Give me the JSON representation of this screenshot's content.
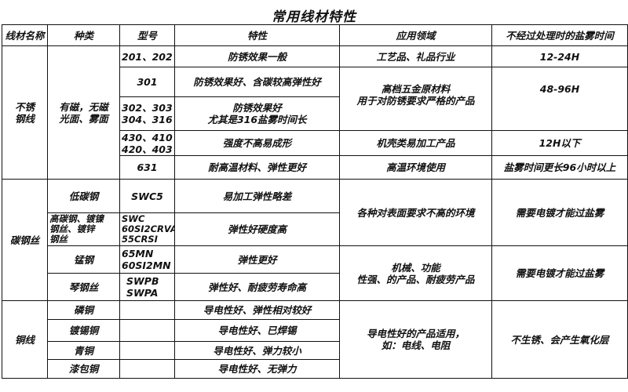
{
  "title": "常用线材特性",
  "headers": [
    "线材名称",
    "种类",
    "型号",
    "特性",
    "应用领域",
    "不经过处理时的盐雾时间"
  ],
  "stainless": {
    "name": "不锈\n钢线",
    "kind": "有磁，无磁\n光面、雾面",
    "rows": [
      {
        "model": "201、202",
        "feature": "防锈效果一般"
      },
      {
        "model": "301",
        "feature": "防锈效果好、含碳较高弹性好"
      },
      {
        "model": "302、303\n304、316",
        "feature": "防锈效果好\n尤其是316盐雾时间长"
      },
      {
        "model": "430、410\n420、403",
        "feature": "强度不高易成形"
      },
      {
        "model": "631",
        "feature": "耐高温材料、弹性更好"
      }
    ],
    "apps": [
      "工艺品、礼品行业",
      "高档五金原材料\n用于对防锈要求严格的产品",
      "机壳类易加工产品",
      "高温环境使用"
    ],
    "salt": [
      "12-24H",
      "48-96H",
      "12H以下",
      "盐雾时间更长96小时以上"
    ]
  },
  "carbon": {
    "name": "碳钢丝",
    "rows": [
      {
        "kind": "低碳钢",
        "model": "SWC5",
        "feature": "易加工弹性略差"
      },
      {
        "kind": "高碳钢、镀镍\n钢丝、镀锌\n钢丝",
        "model": "SWC\n60SI2CRVA、\n55CRSI",
        "feature": "弹性好硬度高"
      },
      {
        "kind": "锰钢",
        "model": "65MN\n60SI2MN",
        "feature": "弹性更好"
      },
      {
        "kind": "琴钢丝",
        "model": "SWPB\nSWPA",
        "feature": "弹性好、耐疲劳寿命高"
      }
    ],
    "apps": [
      "各种对表面要求不高的环境",
      "机械、功能\n性强、的产品、耐疲劳产品"
    ],
    "salt": [
      "需要电镀才能过盐雾",
      "需要电镀才能过盐雾"
    ]
  },
  "copper": {
    "name": "铜线",
    "rows": [
      {
        "kind": "磷铜",
        "model": "",
        "feature": "导电性好、弹性相对较好"
      },
      {
        "kind": "镀锡铜",
        "model": "",
        "feature": "导电性好、已焊锡"
      },
      {
        "kind": "青铜",
        "model": "",
        "feature": "导电性好、弹力较小"
      },
      {
        "kind": "漆包铜",
        "model": "",
        "feature": "导电性好、无弹力"
      }
    ],
    "app": "导电性好的产品适用，\n如：电线、电阻",
    "salt": "不生锈、会产生氧化层"
  }
}
